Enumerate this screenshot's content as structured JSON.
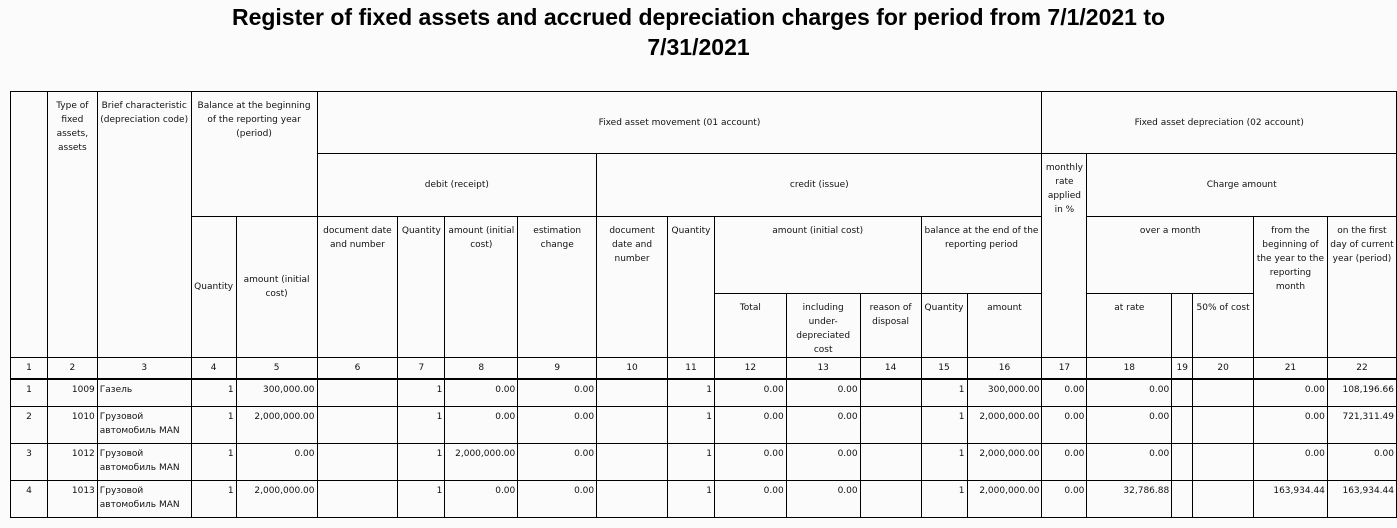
{
  "title": {
    "line1": "Register of fixed assets and accrued depreciation charges for period from 7/1/2021 to",
    "line2": "7/31/2021"
  },
  "headers": {
    "type": "Type of fixed assets, assets",
    "brief": "Brief characteristic (depreciation code)",
    "balance_begin": "Balance at the beginning of the reporting year (period)",
    "movement": "Fixed asset movement (01 account)",
    "depreciation": "Fixed asset depreciation (02 account)",
    "debit": "debit (receipt)",
    "credit": "credit (issue)",
    "monthly_rate": "monthly rate applied in %",
    "charge_amount": "Charge amount",
    "quantity": "Quantity",
    "amount_initial_cost_balance": "amount (initial cost)",
    "doc_date_debit": "document date and number",
    "quantity_debit": "Quantity",
    "amount_initial_cost_debit": "amount (initial cost)",
    "estimation_change": "estimation change",
    "doc_date_credit": "document date and number",
    "quantity_credit": "Quantity",
    "amount_initial_cost_credit": "amount (initial cost)",
    "balance_end": "balance at the end of the reporting period",
    "over_month": "over a month",
    "from_beginning": "from the beginning of the year to the reporting month",
    "first_day": "on the first day of current year (period)",
    "total": "Total",
    "including_under": "including under-depreciated cost",
    "reason_disposal": "reason of disposal",
    "quantity_end": "Quantity",
    "amount_end": "amount",
    "at_rate": "at rate",
    "fifty_cost": "50% of cost"
  },
  "column_numbers": [
    "1",
    "2",
    "3",
    "4",
    "5",
    "6",
    "7",
    "8",
    "9",
    "10",
    "11",
    "12",
    "13",
    "14",
    "15",
    "16",
    "17",
    "18",
    "19",
    "20",
    "21",
    "22"
  ],
  "rows": [
    [
      "1",
      "1009",
      "Газель",
      "1",
      "300,000.00",
      "",
      "1",
      "0.00",
      "0.00",
      "",
      "1",
      "0.00",
      "0.00",
      "",
      "1",
      "300,000.00",
      "0.00",
      "0.00",
      "",
      "",
      "0.00",
      "108,196.66"
    ],
    [
      "2",
      "1010",
      "Грузовой автомобиль MAN",
      "1",
      "2,000,000.00",
      "",
      "1",
      "0.00",
      "0.00",
      "",
      "1",
      "0.00",
      "0.00",
      "",
      "1",
      "2,000,000.00",
      "0.00",
      "0.00",
      "",
      "",
      "0.00",
      "721,311.49"
    ],
    [
      "3",
      "1012",
      "Грузовой автомобиль MAN",
      "1",
      "0.00",
      "",
      "1",
      "2,000,000.00",
      "0.00",
      "",
      "1",
      "0.00",
      "0.00",
      "",
      "1",
      "2,000,000.00",
      "0.00",
      "0.00",
      "",
      "",
      "0.00",
      "0.00"
    ],
    [
      "4",
      "1013",
      "Грузовой автомобиль MAN",
      "1",
      "2,000,000.00",
      "",
      "1",
      "0.00",
      "0.00",
      "",
      "1",
      "0.00",
      "0.00",
      "",
      "1",
      "2,000,000.00",
      "0.00",
      "32,786.88",
      "",
      "",
      "163,934.44",
      "163,934.44"
    ]
  ]
}
